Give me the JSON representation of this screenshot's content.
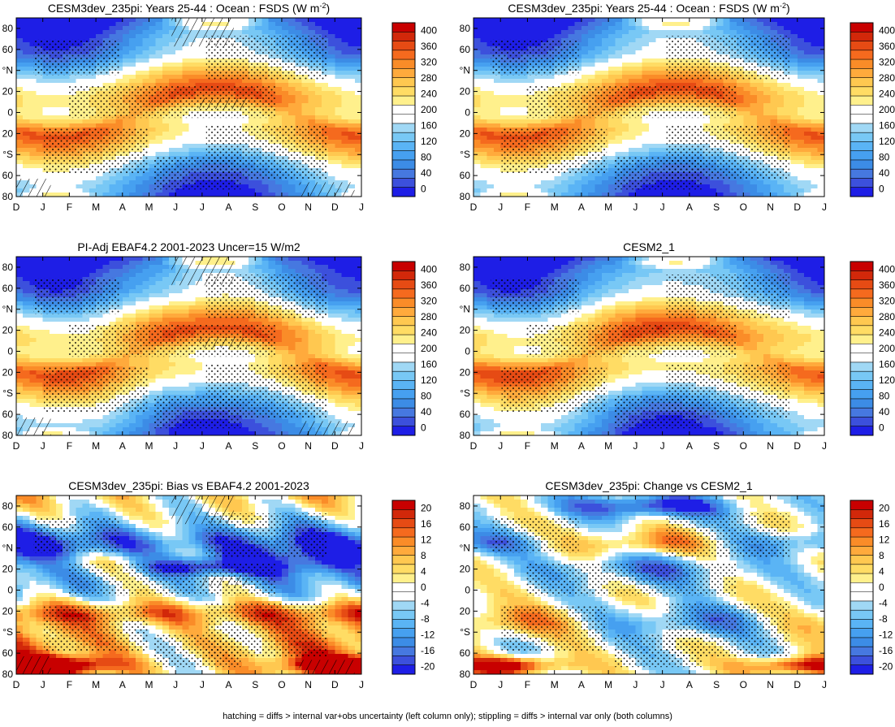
{
  "footnote": "hatching = diffs > internal var+obs uncertainty (left column only); stippling = diffs > internal var only (both columns)",
  "palettes": {
    "absolute": [
      "#1e1ee6",
      "#3c50dc",
      "#4678e0",
      "#3c8ce6",
      "#46a0f0",
      "#5ab4f5",
      "#78c8f5",
      "#a0d8f5",
      "#ffffff",
      "#ffffff",
      "#fff08c",
      "#ffdc64",
      "#ffc850",
      "#ffaa3c",
      "#fa8c28",
      "#f56a1e",
      "#e64b14",
      "#d2280a",
      "#c80000"
    ],
    "difference": [
      "#1e1ee6",
      "#3c50dc",
      "#4678e0",
      "#3c8ce6",
      "#46a0f0",
      "#5ab4f5",
      "#78c8f5",
      "#a0d8f5",
      "#ffffff",
      "#ffffff",
      "#fff08c",
      "#ffdc64",
      "#ffc850",
      "#ffaa3c",
      "#fa8c28",
      "#f56a1e",
      "#e64b14",
      "#d2280a",
      "#c80000"
    ]
  },
  "chart_data": [
    {
      "id": "p1",
      "type": "heatmap",
      "title": "CESM3dev_235pi: Years 25-44 : Ocean : FSDS (W m",
      "title_sup": "-2",
      "title_tail": ")",
      "field": "abs",
      "variant": "model",
      "hatch": true,
      "stipple": true,
      "x": [
        "D",
        "J",
        "F",
        "M",
        "A",
        "M",
        "J",
        "J",
        "A",
        "S",
        "O",
        "N",
        "D",
        "J"
      ],
      "y": [
        "80",
        "60",
        "°N",
        "20",
        "0",
        "20",
        "°S",
        "60",
        "80"
      ],
      "ylim": [
        -80,
        90
      ],
      "colormap": "absolute",
      "colorbar": [
        "400",
        "360",
        "320",
        "280",
        "240",
        "200",
        "160",
        "120",
        "80",
        "40",
        "0"
      ]
    },
    {
      "id": "p2",
      "type": "heatmap",
      "title": "CESM3dev_235pi: Years 25-44 : Ocean : FSDS (W m",
      "title_sup": "-2",
      "title_tail": ")",
      "field": "abs",
      "variant": "model",
      "hatch": false,
      "stipple": true,
      "x": [
        "D",
        "J",
        "F",
        "M",
        "A",
        "M",
        "J",
        "J",
        "A",
        "S",
        "O",
        "N",
        "D",
        "J"
      ],
      "y": [
        "80",
        "60",
        "°N",
        "20",
        "0",
        "20",
        "°S",
        "60",
        "80"
      ],
      "ylim": [
        -80,
        90
      ],
      "colormap": "absolute",
      "colorbar": [
        "400",
        "360",
        "320",
        "280",
        "240",
        "200",
        "160",
        "120",
        "80",
        "40",
        "0"
      ]
    },
    {
      "id": "p3",
      "type": "heatmap",
      "title": "PI-Adj EBAF4.2 2001-2023 Uncer=15 W/m2",
      "title_sup": "",
      "title_tail": "",
      "field": "abs",
      "variant": "obs",
      "hatch": true,
      "stipple": true,
      "x": [
        "D",
        "J",
        "F",
        "M",
        "A",
        "M",
        "J",
        "J",
        "A",
        "S",
        "O",
        "N",
        "D",
        "J"
      ],
      "y": [
        "80",
        "60",
        "°N",
        "20",
        "0",
        "20",
        "°S",
        "60",
        "80"
      ],
      "ylim": [
        -80,
        90
      ],
      "colormap": "absolute",
      "colorbar": [
        "400",
        "360",
        "320",
        "280",
        "240",
        "200",
        "160",
        "120",
        "80",
        "40",
        "0"
      ]
    },
    {
      "id": "p4",
      "type": "heatmap",
      "title": "CESM2_1",
      "title_sup": "",
      "title_tail": "",
      "field": "abs",
      "variant": "cesm2",
      "hatch": false,
      "stipple": true,
      "x": [
        "D",
        "J",
        "F",
        "M",
        "A",
        "M",
        "J",
        "J",
        "A",
        "S",
        "O",
        "N",
        "D",
        "J"
      ],
      "y": [
        "80",
        "60",
        "°N",
        "20",
        "0",
        "20",
        "°S",
        "60",
        "80"
      ],
      "ylim": [
        -80,
        90
      ],
      "colormap": "absolute",
      "colorbar": [
        "400",
        "360",
        "320",
        "280",
        "240",
        "200",
        "160",
        "120",
        "80",
        "40",
        "0"
      ]
    },
    {
      "id": "p5",
      "type": "heatmap",
      "title": "CESM3dev_235pi: Bias vs EBAF4.2 2001-2023",
      "title_sup": "",
      "title_tail": "",
      "field": "bias",
      "variant": "bias",
      "hatch": true,
      "stipple": true,
      "x": [
        "D",
        "J",
        "F",
        "M",
        "A",
        "M",
        "J",
        "J",
        "A",
        "S",
        "O",
        "N",
        "D",
        "J"
      ],
      "y": [
        "80",
        "60",
        "°N",
        "20",
        "0",
        "20",
        "°S",
        "60",
        "80"
      ],
      "ylim": [
        -80,
        90
      ],
      "colormap": "difference",
      "colorbar": [
        "20",
        "16",
        "12",
        "8",
        "4",
        "0",
        "-4",
        "-8",
        "-12",
        "-16",
        "-20"
      ]
    },
    {
      "id": "p6",
      "type": "heatmap",
      "title": "CESM3dev_235pi: Change vs CESM2_1",
      "title_sup": "",
      "title_tail": "",
      "field": "change",
      "variant": "change",
      "hatch": false,
      "stipple": true,
      "x": [
        "D",
        "J",
        "F",
        "M",
        "A",
        "M",
        "J",
        "J",
        "A",
        "S",
        "O",
        "N",
        "D",
        "J"
      ],
      "y": [
        "80",
        "60",
        "°N",
        "20",
        "0",
        "20",
        "°S",
        "60",
        "80"
      ],
      "ylim": [
        -80,
        90
      ],
      "colormap": "difference",
      "colorbar": [
        "20",
        "16",
        "12",
        "8",
        "4",
        "0",
        "-4",
        "-8",
        "-12",
        "-16",
        "-20"
      ]
    }
  ]
}
